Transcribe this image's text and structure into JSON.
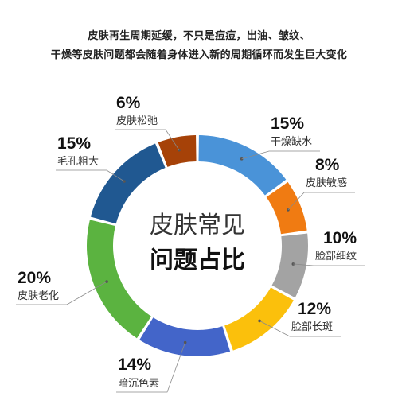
{
  "headline": {
    "line1": "皮肤再生周期延缓，不只是痘痘，出油、皱纹、",
    "line2": "干燥等皮肤问题都会随着身体进入新的周期循环而发生巨大变化"
  },
  "chart_data": {
    "type": "pie",
    "donut": true,
    "center_title": "皮肤常见",
    "center_subtitle": "问题占比",
    "categories": [
      "干燥缺水",
      "皮肤敏感",
      "脸部细纹",
      "脸部长斑",
      "暗沉色素",
      "皮肤老化",
      "毛孔粗大",
      "皮肤松弛"
    ],
    "values": [
      15,
      8,
      10,
      12,
      14,
      20,
      15,
      6
    ],
    "value_labels": [
      "15%",
      "8%",
      "10%",
      "12%",
      "14%",
      "20%",
      "15%",
      "6%"
    ],
    "colors": [
      "#4a93d8",
      "#f07b12",
      "#a3a3a3",
      "#fbc00c",
      "#4365c9",
      "#5bb340",
      "#205891",
      "#a64208"
    ],
    "start": "top-clockwise"
  }
}
